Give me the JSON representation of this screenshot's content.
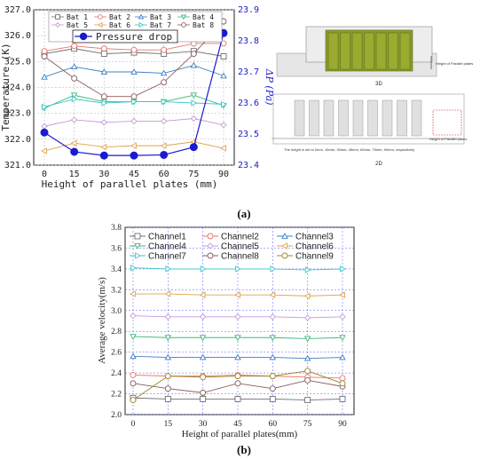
{
  "figure_a": {
    "caption": "(a)",
    "chart_data": {
      "type": "line",
      "x": [
        0,
        15,
        30,
        45,
        60,
        75,
        90
      ],
      "xlabel": "Height of parallel plates (mm)",
      "ylabel": "Temperature (K)",
      "ylabel_right": "ΔP (Pa)",
      "ylim": [
        321,
        327
      ],
      "ylim_right": [
        23.4,
        23.9
      ],
      "yticks": [
        "321.0",
        "322.0",
        "323.0",
        "324.0",
        "325.0",
        "326.0",
        "327.0"
      ],
      "yticks_right": [
        "23.4",
        "23.5",
        "23.6",
        "23.7",
        "23.8",
        "23.9"
      ],
      "xticks": [
        "0",
        "15",
        "30",
        "45",
        "60",
        "75",
        "90"
      ],
      "series": [
        {
          "name": "Bat 1",
          "color": "#6e6e6e",
          "marker": "square",
          "values": [
            325.3,
            325.5,
            325.3,
            325.35,
            325.3,
            325.4,
            325.2
          ]
        },
        {
          "name": "Bat 2",
          "color": "#e8746a",
          "marker": "circle",
          "values": [
            325.4,
            325.6,
            325.5,
            325.45,
            325.45,
            325.7,
            325.7
          ]
        },
        {
          "name": "Bat 3",
          "color": "#3c7fc0",
          "marker": "triangle-up",
          "values": [
            324.4,
            324.8,
            324.6,
            324.6,
            324.55,
            324.85,
            324.45
          ]
        },
        {
          "name": "Bat 4",
          "color": "#3cba7c",
          "marker": "triangle-down",
          "values": [
            323.2,
            323.7,
            323.45,
            323.45,
            323.45,
            323.7,
            323.3
          ]
        },
        {
          "name": "Bat 5",
          "color": "#c59ad8",
          "marker": "diamond",
          "values": [
            322.5,
            322.75,
            322.65,
            322.7,
            322.7,
            322.8,
            322.55
          ]
        },
        {
          "name": "Bat 6",
          "color": "#dfa34a",
          "marker": "triangle-left",
          "values": [
            321.55,
            321.85,
            321.7,
            321.75,
            321.75,
            321.9,
            321.65
          ]
        },
        {
          "name": "Bat 7",
          "color": "#3bc6c8",
          "marker": "triangle-right",
          "values": [
            323.25,
            323.55,
            323.4,
            323.45,
            323.45,
            323.4,
            323.35
          ]
        },
        {
          "name": "Bat 8",
          "color": "#8a5a5a",
          "marker": "circle",
          "values": [
            325.2,
            324.35,
            323.65,
            323.65,
            324.2,
            325.3,
            326.55
          ]
        }
      ],
      "pressure_series": {
        "name": "Pressure drop",
        "color": "#1a1ad0",
        "marker": "filled-circle",
        "values": [
          23.505,
          23.443,
          23.431,
          23.431,
          23.433,
          23.458,
          23.825
        ]
      }
    },
    "diagram": {
      "label_3d": "3D",
      "label_2d": "2D",
      "height_label_3d": "Height of Parallel plates",
      "height_label_2d": "Height of Parallel plates",
      "note_2d": "The height is set to 0mm, 15mm, 30mm, 45mm, 60mm, 75mm, 90mm, respectively"
    }
  },
  "figure_b": {
    "caption": "(b)",
    "chart_data": {
      "type": "line",
      "x": [
        0,
        15,
        30,
        45,
        60,
        75,
        90
      ],
      "xlabel": "Height of parallel plates(mm)",
      "ylabel": "Average velocity(m/s)",
      "ylim": [
        2.0,
        3.8
      ],
      "yticks": [
        "2.0",
        "2.2",
        "2.4",
        "2.6",
        "2.8",
        "3.0",
        "3.2",
        "3.4",
        "3.6",
        "3.8"
      ],
      "xticks": [
        "0",
        "15",
        "30",
        "45",
        "60",
        "75",
        "90"
      ],
      "series": [
        {
          "name": "Channel1",
          "color": "#6e6e6e",
          "marker": "square",
          "values": [
            2.16,
            2.15,
            2.15,
            2.15,
            2.15,
            2.14,
            2.15
          ]
        },
        {
          "name": "Channel2",
          "color": "#e8746a",
          "marker": "circle",
          "values": [
            2.38,
            2.37,
            2.37,
            2.38,
            2.37,
            2.36,
            2.35
          ]
        },
        {
          "name": "Channel3",
          "color": "#3c7fc0",
          "marker": "triangle-up",
          "values": [
            2.56,
            2.55,
            2.55,
            2.55,
            2.55,
            2.54,
            2.55
          ]
        },
        {
          "name": "Channel4",
          "color": "#3cba7c",
          "marker": "triangle-down",
          "values": [
            2.75,
            2.74,
            2.74,
            2.74,
            2.74,
            2.73,
            2.74
          ]
        },
        {
          "name": "Channel5",
          "color": "#c59ad8",
          "marker": "diamond",
          "values": [
            2.95,
            2.94,
            2.94,
            2.94,
            2.94,
            2.93,
            2.94
          ]
        },
        {
          "name": "Channel6",
          "color": "#dfa34a",
          "marker": "triangle-left",
          "values": [
            3.16,
            3.16,
            3.15,
            3.15,
            3.15,
            3.14,
            3.15
          ]
        },
        {
          "name": "Channel7",
          "color": "#3bc6c8",
          "marker": "triangle-right",
          "values": [
            3.41,
            3.4,
            3.4,
            3.4,
            3.4,
            3.39,
            3.4
          ]
        },
        {
          "name": "Channel8",
          "color": "#8a5a5a",
          "marker": "circle",
          "values": [
            2.3,
            2.25,
            2.21,
            2.3,
            2.25,
            2.33,
            2.27
          ]
        },
        {
          "name": "Channel9",
          "color": "#9a8a30",
          "marker": "circle",
          "values": [
            2.14,
            2.37,
            2.36,
            2.37,
            2.37,
            2.42,
            2.3
          ]
        }
      ]
    }
  }
}
